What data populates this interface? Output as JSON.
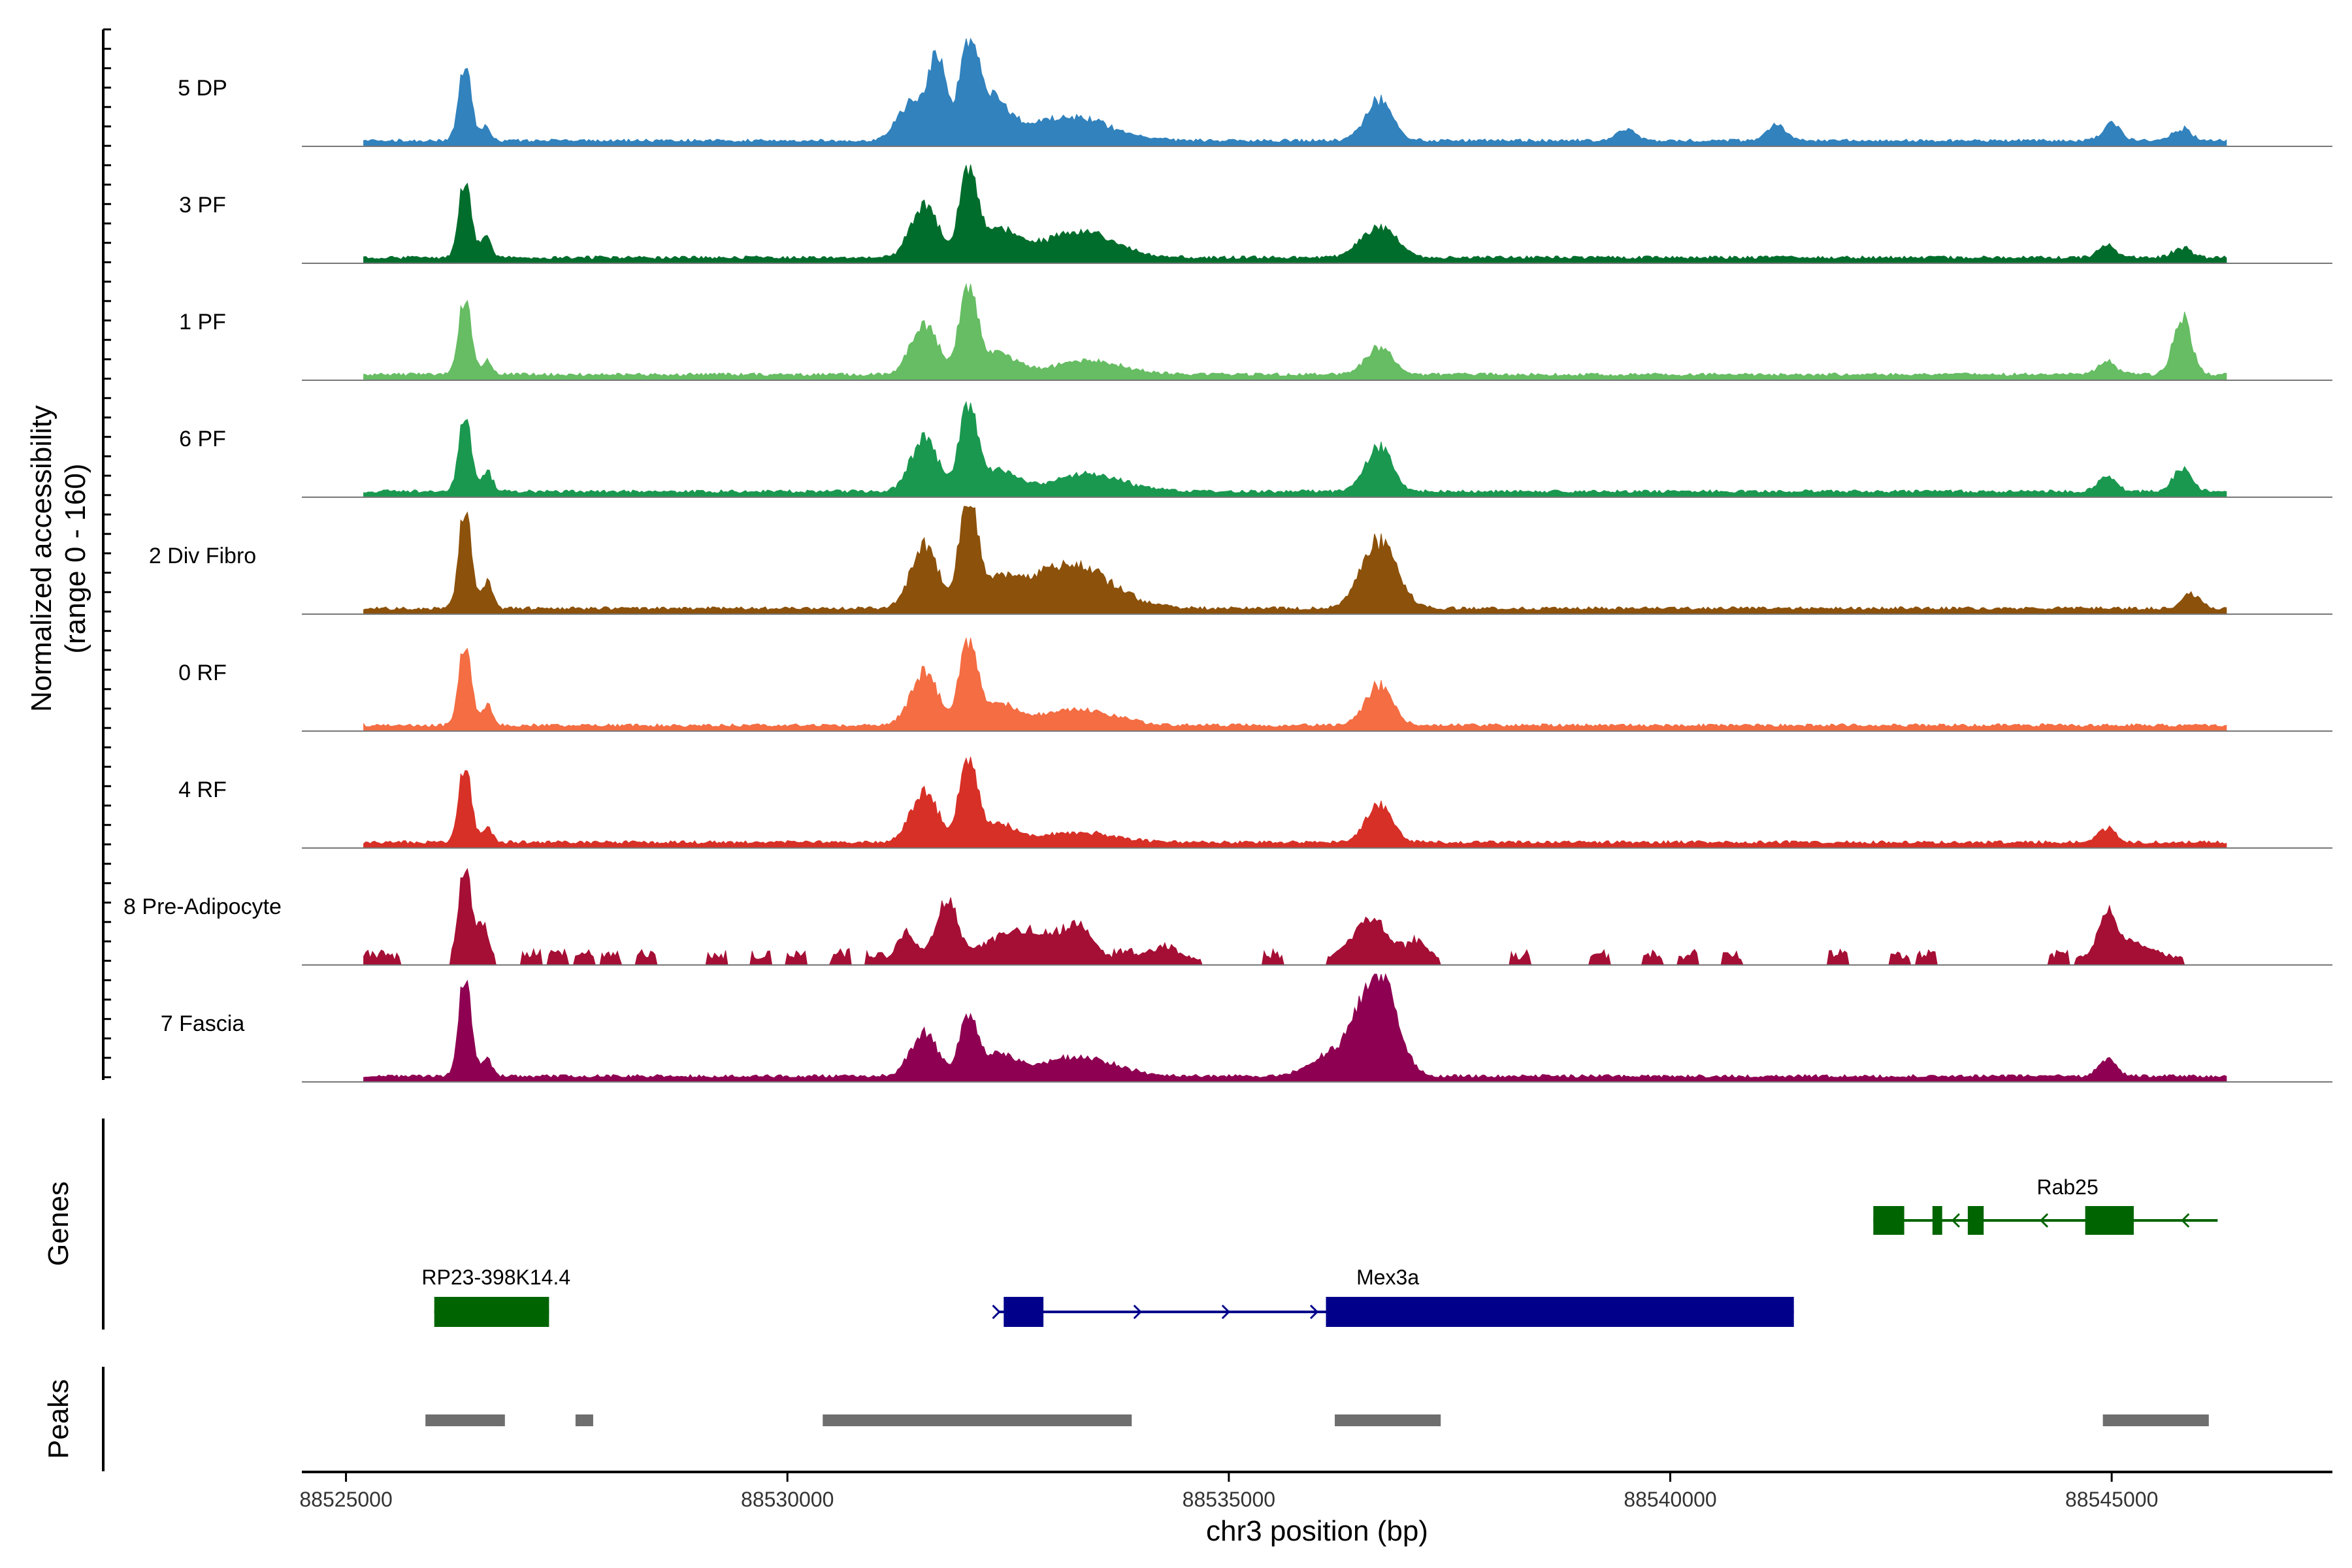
{
  "chart_data": {
    "type": "coverage",
    "ylabel_line1": "Normalized accessibility",
    "ylabel_line2": "(range 0 - 160)",
    "xlabel": "chr3 position (bp)",
    "xlim": [
      88524500,
      88547500
    ],
    "x_ticks": [
      88525000,
      88530000,
      88535000,
      88540000,
      88545000
    ],
    "x_tick_labels": [
      "88525000",
      "88530000",
      "88535000",
      "88540000",
      "88545000"
    ],
    "y_range": [
      0,
      160
    ],
    "tracks": [
      {
        "name": "5 DP",
        "color": "#3182BD",
        "scale": 1.0,
        "tiny": [],
        "peaks": [
          [
            88526350,
            115,
            70
          ],
          [
            88526580,
            20,
            50
          ],
          [
            88531400,
            55,
            150
          ],
          [
            88531700,
            120,
            100
          ],
          [
            88532050,
            125,
            100
          ],
          [
            88532300,
            60,
            200
          ],
          [
            88533200,
            35,
            450
          ],
          [
            88536700,
            60,
            150
          ],
          [
            88539500,
            18,
            100
          ],
          [
            88541200,
            25,
            100
          ],
          [
            88545000,
            25,
            100
          ],
          [
            88545800,
            18,
            100
          ]
        ]
      },
      {
        "name": "3 PF",
        "color": "#006D2C",
        "scale": 1.0,
        "tiny": [],
        "peaks": [
          [
            88526350,
            115,
            70
          ],
          [
            88526580,
            30,
            60
          ],
          [
            88531550,
            80,
            150
          ],
          [
            88532050,
            125,
            100
          ],
          [
            88532400,
            40,
            200
          ],
          [
            88533300,
            40,
            400
          ],
          [
            88536700,
            45,
            200
          ],
          [
            88544950,
            18,
            100
          ],
          [
            88545800,
            15,
            100
          ]
        ]
      },
      {
        "name": "1 PF",
        "color": "#66BD63",
        "scale": 1.0,
        "tiny": [],
        "peaks": [
          [
            88526350,
            115,
            70
          ],
          [
            88526600,
            20,
            50
          ],
          [
            88531550,
            75,
            150
          ],
          [
            88532050,
            125,
            100
          ],
          [
            88532400,
            30,
            200
          ],
          [
            88533400,
            20,
            400
          ],
          [
            88536700,
            40,
            150
          ],
          [
            88544950,
            20,
            100
          ],
          [
            88545800,
            85,
            100
          ]
        ]
      },
      {
        "name": "6 PF",
        "color": "#1A9850",
        "scale": 1.0,
        "tiny": [],
        "peaks": [
          [
            88526350,
            115,
            70
          ],
          [
            88526600,
            30,
            60
          ],
          [
            88531550,
            80,
            150
          ],
          [
            88532050,
            125,
            100
          ],
          [
            88532400,
            30,
            200
          ],
          [
            88533400,
            25,
            400
          ],
          [
            88536700,
            65,
            150
          ],
          [
            88544950,
            22,
            100
          ],
          [
            88545800,
            35,
            100
          ]
        ]
      },
      {
        "name": "2 Div Fibro",
        "color": "#8C510A",
        "scale": 1.0,
        "tiny": [],
        "peaks": [
          [
            88526350,
            150,
            70
          ],
          [
            88526600,
            40,
            60
          ],
          [
            88531550,
            95,
            150
          ],
          [
            88532050,
            160,
            100
          ],
          [
            88532400,
            35,
            200
          ],
          [
            88533200,
            65,
            450
          ],
          [
            88536700,
            100,
            200
          ],
          [
            88545900,
            22,
            100
          ]
        ]
      },
      {
        "name": "0 RF",
        "color": "#F46D43",
        "scale": 1.0,
        "tiny": [],
        "peaks": [
          [
            88526350,
            120,
            70
          ],
          [
            88526600,
            30,
            60
          ],
          [
            88531550,
            80,
            150
          ],
          [
            88532050,
            120,
            100
          ],
          [
            88532400,
            30,
            200
          ],
          [
            88533300,
            25,
            400
          ],
          [
            88536700,
            60,
            150
          ]
        ]
      },
      {
        "name": "4 RF",
        "color": "#D73027",
        "scale": 1.0,
        "tiny": [],
        "peaks": [
          [
            88526350,
            115,
            70
          ],
          [
            88526600,
            20,
            60
          ],
          [
            88531550,
            75,
            150
          ],
          [
            88532050,
            120,
            100
          ],
          [
            88532400,
            25,
            200
          ],
          [
            88533300,
            15,
            400
          ],
          [
            88536700,
            55,
            150
          ],
          [
            88544950,
            20,
            100
          ]
        ]
      },
      {
        "name": "8 Pre-Adipocyte",
        "color": "#A50F35",
        "scale": 1.0,
        "tiny": [
          88525300,
          88525500,
          88527100,
          88527400,
          88527700,
          88528000,
          88528400,
          88529200,
          88529700,
          88530100,
          88530600,
          88531000,
          88533800,
          88534300,
          88535500,
          88537000,
          88538300,
          88539200,
          88539800,
          88540200,
          88540700,
          88541900,
          88542600,
          88542900,
          88544400
        ],
        "peaks": [
          [
            88526350,
            140,
            70
          ],
          [
            88526550,
            55,
            60
          ],
          [
            88531350,
            40,
            100
          ],
          [
            88531800,
            85,
            120
          ],
          [
            88532700,
            45,
            400
          ],
          [
            88533300,
            40,
            150
          ],
          [
            88534200,
            15,
            200
          ],
          [
            88536600,
            60,
            200
          ],
          [
            88537150,
            25,
            100
          ],
          [
            88544950,
            55,
            100
          ],
          [
            88545200,
            25,
            250
          ]
        ]
      },
      {
        "name": "7 Fascia",
        "color": "#8E0152",
        "scale": 1.0,
        "tiny": [],
        "peaks": [
          [
            88526350,
            150,
            70
          ],
          [
            88526600,
            25,
            60
          ],
          [
            88531550,
            65,
            150
          ],
          [
            88532050,
            85,
            100
          ],
          [
            88532400,
            30,
            200
          ],
          [
            88533300,
            30,
            400
          ],
          [
            88536700,
            140,
            200
          ],
          [
            88536300,
            40,
            300
          ],
          [
            88544950,
            25,
            100
          ]
        ]
      }
    ],
    "genes": [
      {
        "name": "RP23-398K14.4",
        "color": "#006400",
        "row": "lower",
        "line": [
          88526000,
          88527300
        ],
        "exons": [
          [
            88526000,
            88527300
          ]
        ],
        "arrows": [],
        "arrow_dir": "none",
        "label_x": 88526700
      },
      {
        "name": "Mex3a",
        "color": "#00008B",
        "row": "lower",
        "line": [
          88532400,
          88541400
        ],
        "exons": [
          [
            88532450,
            88532900
          ],
          [
            88536100,
            88541400
          ]
        ],
        "arrows": [
          88532400,
          88534000,
          88535000,
          88536000
        ],
        "arrow_dir": "right",
        "label_x": 88536800
      },
      {
        "name": "Rab25",
        "color": "#006400",
        "row": "upper",
        "line": [
          88542300,
          88546200
        ],
        "exons": [
          [
            88542300,
            88542650
          ],
          [
            88542970,
            88543080
          ],
          [
            88543370,
            88543550
          ],
          [
            88544700,
            88545250
          ]
        ],
        "arrows": [
          88543200,
          88544200,
          88545800
        ],
        "arrow_dir": "left",
        "label_x": 88544500
      }
    ],
    "peaks_track": [
      [
        88525900,
        88526800
      ],
      [
        88527600,
        88527800
      ],
      [
        88530400,
        88533900
      ],
      [
        88536200,
        88537400
      ],
      [
        88544900,
        88546100
      ]
    ],
    "track_titles": [
      "Genes",
      "Peaks"
    ]
  }
}
